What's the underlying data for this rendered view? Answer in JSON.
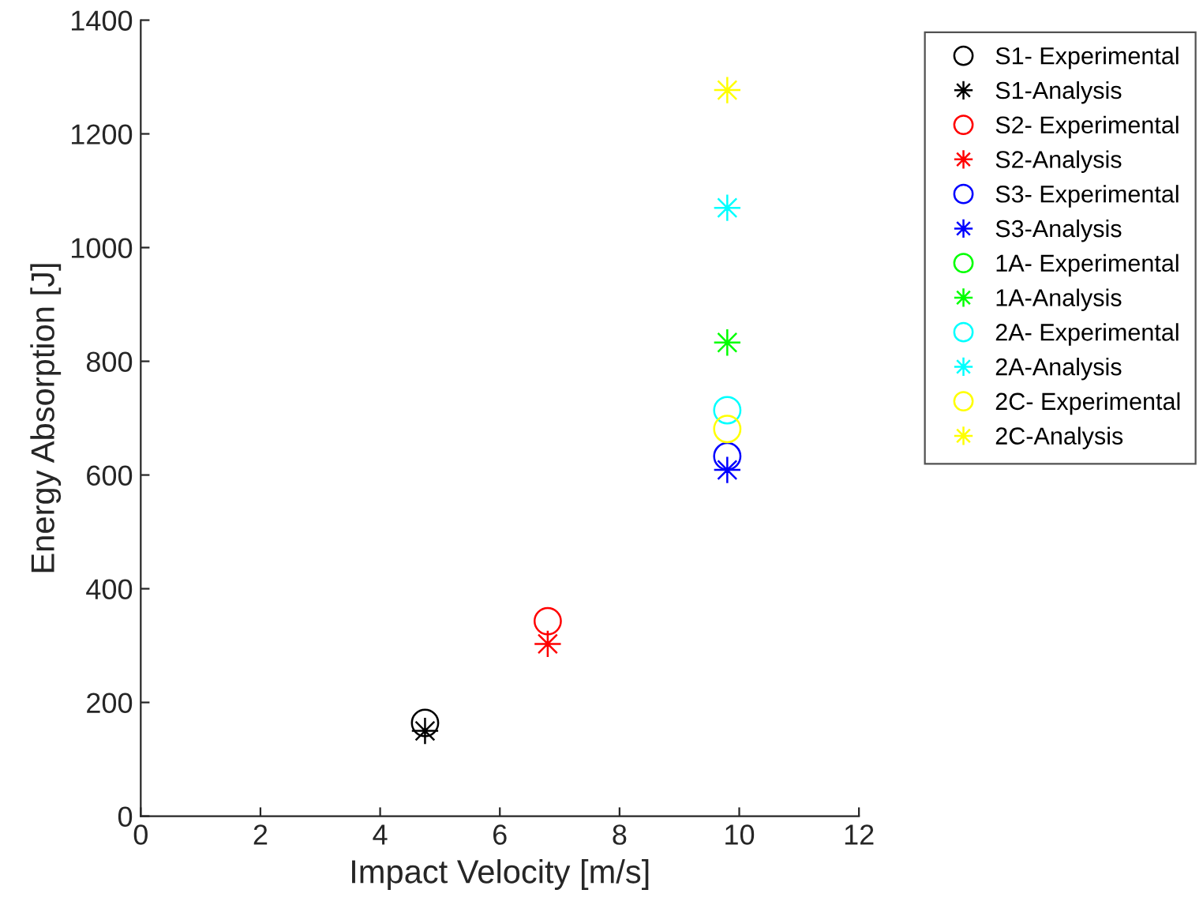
{
  "chart_data": {
    "type": "scatter",
    "xlabel": "Impact Velocity [m/s]",
    "ylabel": "Energy Absorption [J]",
    "xlim": [
      0,
      12
    ],
    "xticks": [
      0,
      2,
      4,
      6,
      8,
      10,
      12
    ],
    "ylim": [
      0,
      1400
    ],
    "yticks": [
      0,
      200,
      400,
      600,
      800,
      1000,
      1200,
      1400
    ],
    "grid": false,
    "legend": "top right",
    "series": [
      {
        "name": "S1- Experimental",
        "color": "#000000",
        "marker": "circle",
        "x": [
          4.75
        ],
        "values": [
          164
        ]
      },
      {
        "name": "S1-Analysis",
        "color": "#000000",
        "marker": "star",
        "x": [
          4.75
        ],
        "values": [
          150
        ]
      },
      {
        "name": "S2- Experimental",
        "color": "#ff0000",
        "marker": "circle",
        "x": [
          6.8
        ],
        "values": [
          343
        ]
      },
      {
        "name": "S2-Analysis",
        "color": "#ff0000",
        "marker": "star",
        "x": [
          6.8
        ],
        "values": [
          303
        ]
      },
      {
        "name": "S3- Experimental",
        "color": "#0000ff",
        "marker": "circle",
        "x": [
          9.8
        ],
        "values": [
          633
        ]
      },
      {
        "name": "S3-Analysis",
        "color": "#0000ff",
        "marker": "star",
        "x": [
          9.8
        ],
        "values": [
          609
        ]
      },
      {
        "name": "1A- Experimental",
        "color": "#00ff00",
        "marker": "circle",
        "x": [
          null
        ],
        "values": [
          null
        ]
      },
      {
        "name": "1A-Analysis",
        "color": "#00ff00",
        "marker": "star",
        "x": [
          9.8
        ],
        "values": [
          833
        ]
      },
      {
        "name": "2A- Experimental",
        "color": "#00ffff",
        "marker": "circle",
        "x": [
          9.8
        ],
        "values": [
          714
        ]
      },
      {
        "name": "2A-Analysis",
        "color": "#00ffff",
        "marker": "star",
        "x": [
          9.8
        ],
        "values": [
          1070
        ]
      },
      {
        "name": "2C- Experimental",
        "color": "#ffff00",
        "marker": "circle",
        "x": [
          9.8
        ],
        "values": [
          681
        ]
      },
      {
        "name": "2C-Analysis",
        "color": "#ffff00",
        "marker": "star",
        "x": [
          9.8
        ],
        "values": [
          1277
        ]
      }
    ]
  }
}
